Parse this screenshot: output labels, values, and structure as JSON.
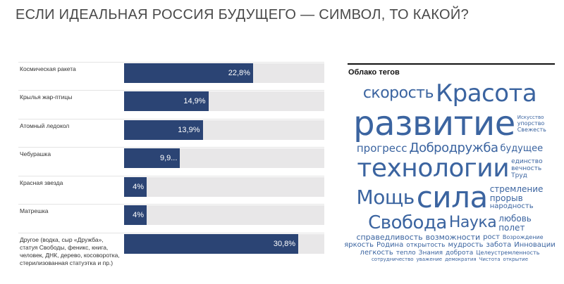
{
  "title": "ЕСЛИ ИДЕАЛЬНАЯ РОССИЯ БУДУЩЕГО — СИМВОЛ, ТО КАКОЙ?",
  "chart_data": {
    "type": "bar",
    "orientation": "horizontal",
    "categories": [
      "Космическая ракета",
      "Крылья жар-птицы",
      "Атомный ледокол",
      "Чебурашка",
      "Красная звезда",
      "Матрешка",
      "Другое (водка, сыр «Дружба», статуя Свободы, феникс, книга, человек, ДНК, дерево, косоворотка, стерилизованная статуэтка  и пр.)"
    ],
    "values": [
      22.8,
      14.9,
      13.9,
      9.9,
      4,
      4,
      30.8
    ],
    "data_labels": [
      "22,8%",
      "14,9%",
      "13,9%",
      "9,9...",
      "4%",
      "4%",
      "30,8%"
    ],
    "xlim": [
      0,
      35.4
    ],
    "unit": "%",
    "bar_color": "#2b4474",
    "track_color": "#e8e7e8"
  },
  "tag_cloud": {
    "title": "Облако тегов",
    "color": "#3b64a0",
    "words": [
      "развитие",
      "технологии",
      "сила",
      "Красота",
      "Свобода",
      "Мощь",
      "скорость",
      "Добродружба",
      "Наука",
      "прогресс",
      "стремление",
      "будущее",
      "Возрождение",
      "прорыв",
      "справедливость",
      "полет",
      "любовь",
      "возможности",
      "народность",
      "вечность",
      "единство",
      "Целеустремленность",
      "Свежесть",
      "яркость",
      "Родина",
      "открытость",
      "мудрость",
      "забота",
      "Инновации",
      "легкость",
      "Труд",
      "рост",
      "тепло",
      "Знания",
      "доброта",
      "Искусство",
      "упорство",
      "сотрудничество",
      "уважение",
      "демократия",
      "Чистота",
      "открытие"
    ]
  }
}
